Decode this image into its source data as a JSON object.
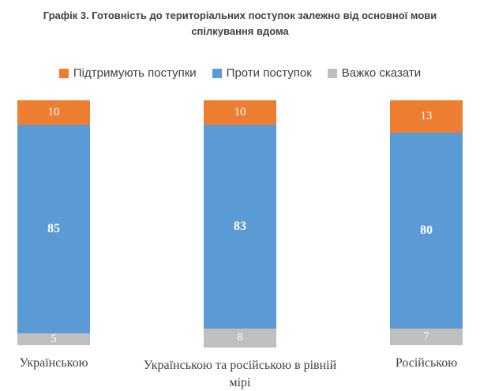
{
  "title": "Графік 3. Готовність до територіальних поступок залежно від основної мови спілкування вдома",
  "chart_data": {
    "type": "bar",
    "stacked": true,
    "orientation": "vertical",
    "title": "Графік 3. Готовність до територіальних поступок залежно від основної мови спілкування вдома",
    "categories": [
      "Українською",
      "Українською та російською в рівній мірі",
      "Російською"
    ],
    "series": [
      {
        "name": "Підтримують поступки",
        "color": "#ED7D31",
        "values": [
          10,
          10,
          13
        ]
      },
      {
        "name": "Проти поступок",
        "color": "#5B9BD5",
        "values": [
          85,
          83,
          80
        ]
      },
      {
        "name": "Важко сказати",
        "color": "#BFBFBF",
        "values": [
          5,
          8,
          7
        ]
      }
    ],
    "ylim": [
      0,
      100
    ],
    "grid": false,
    "legend_position": "top",
    "data_label_color": "#ffffff"
  }
}
